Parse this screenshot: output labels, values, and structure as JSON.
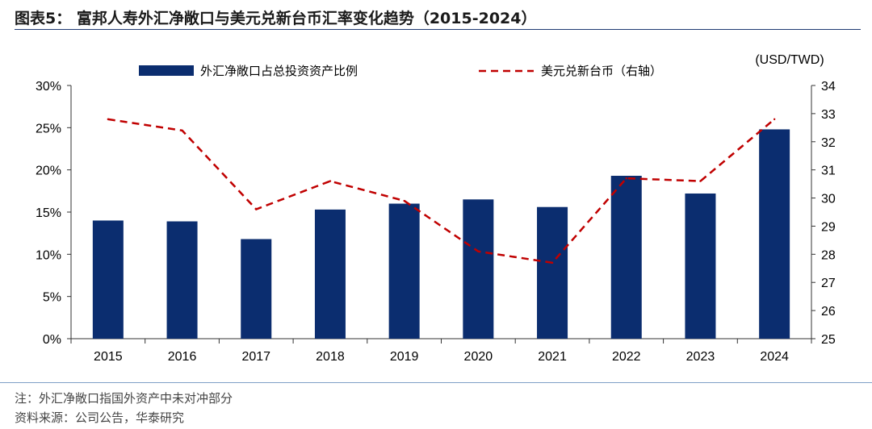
{
  "header": {
    "title": "图表5：  富邦人寿外汇净敞口与美元兑新台币汇率变化趋势（2015-2024）"
  },
  "chart_data": {
    "type": "bar",
    "categories": [
      "2015",
      "2016",
      "2017",
      "2018",
      "2019",
      "2020",
      "2021",
      "2022",
      "2023",
      "2024"
    ],
    "series": [
      {
        "name": "外汇净敞口占总投资资产比例",
        "type": "bar",
        "axis": "left",
        "values": [
          14.0,
          13.9,
          11.8,
          15.3,
          16.0,
          16.5,
          15.6,
          19.3,
          17.2,
          24.8
        ]
      },
      {
        "name": "美元兑新台币（右轴）",
        "type": "line",
        "style": "dashed",
        "axis": "right",
        "values": [
          32.8,
          32.4,
          29.6,
          30.6,
          29.9,
          28.1,
          27.7,
          30.7,
          30.6,
          32.8
        ]
      }
    ],
    "y_left": {
      "lim": [
        0,
        30
      ],
      "ticks": [
        0,
        5,
        10,
        15,
        20,
        25,
        30
      ],
      "tick_labels": [
        "0%",
        "5%",
        "10%",
        "15%",
        "20%",
        "25%",
        "30%"
      ]
    },
    "y_right": {
      "label": "(USD/TWD)",
      "lim": [
        25,
        34
      ],
      "ticks": [
        25,
        26,
        27,
        28,
        29,
        30,
        31,
        32,
        33,
        34
      ],
      "tick_labels": [
        "25",
        "26",
        "27",
        "28",
        "29",
        "30",
        "31",
        "32",
        "33",
        "34"
      ]
    },
    "colors": {
      "bar": "#0b2d6f",
      "line": "#c00000",
      "axis": "#333333"
    },
    "legend": "top"
  },
  "footer": {
    "note": "注：外汇净敞口指国外资产中未对冲部分",
    "source": "资料来源：公司公告，华泰研究"
  }
}
